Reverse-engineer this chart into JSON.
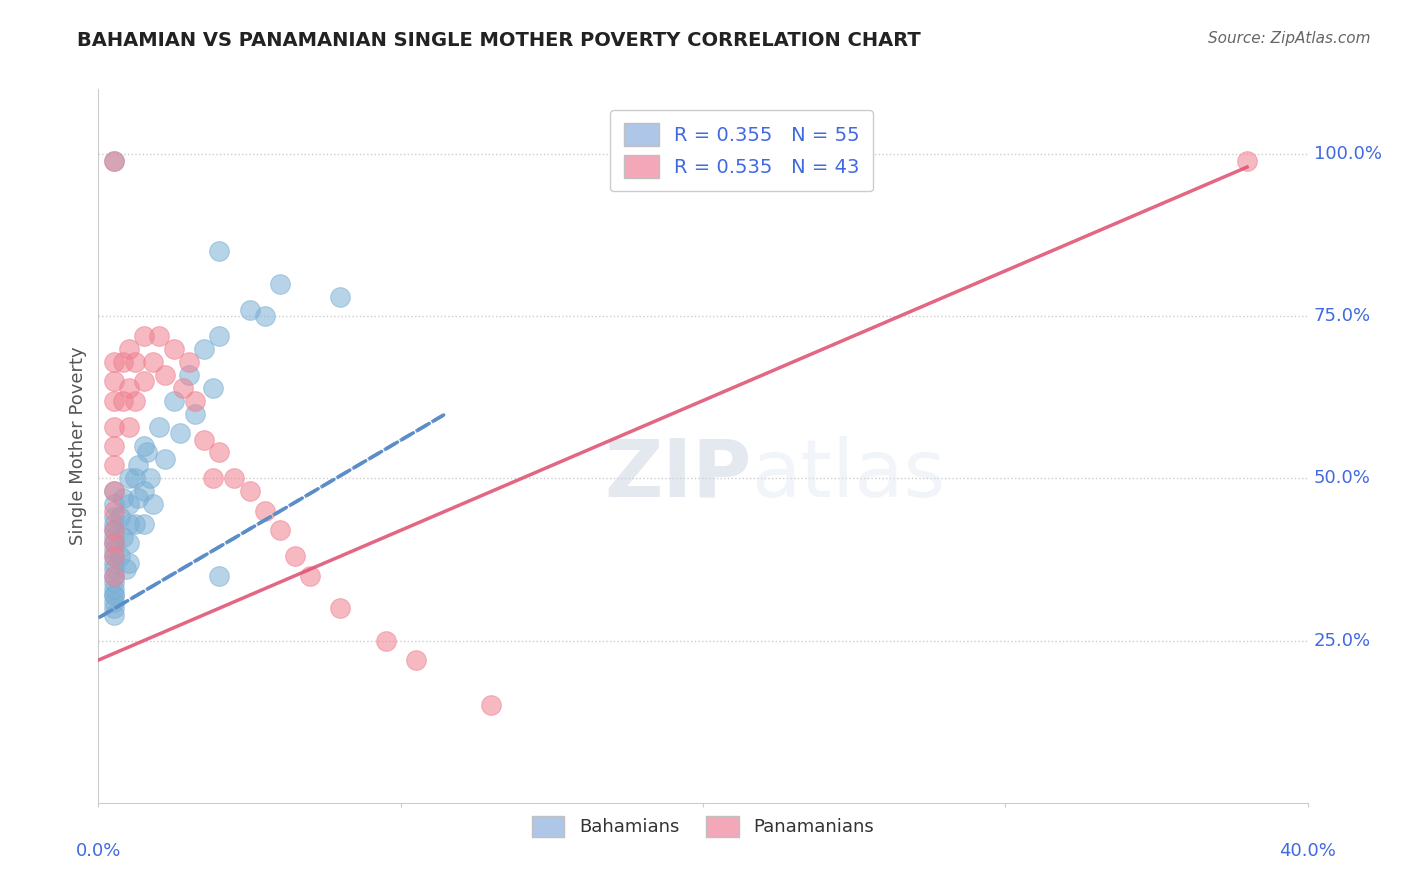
{
  "title": "BAHAMIAN VS PANAMANIAN SINGLE MOTHER POVERTY CORRELATION CHART",
  "source": "Source: ZipAtlas.com",
  "ylabel": "Single Mother Poverty",
  "ytick_labels": [
    "100.0%",
    "75.0%",
    "50.0%",
    "25.0%"
  ],
  "ytick_values": [
    1.0,
    0.75,
    0.5,
    0.25
  ],
  "xlim": [
    0.0,
    0.4
  ],
  "ylim": [
    0.0,
    1.1
  ],
  "legend_entries": [
    {
      "label": "R = 0.355   N = 55",
      "color": "#aec6e8"
    },
    {
      "label": "R = 0.535   N = 43",
      "color": "#f4a7b9"
    }
  ],
  "bahamian_color": "#7bafd4",
  "panamanian_color": "#f08090",
  "watermark_zip": "ZIP",
  "watermark_atlas": "atlas",
  "blue_line": {
    "x0": 0.0,
    "y0": 0.285,
    "x1": 0.115,
    "y1": 0.6
  },
  "pink_line": {
    "x0": 0.0,
    "y0": 0.22,
    "x1": 0.38,
    "y1": 0.98
  },
  "bahamian_x": [
    0.005,
    0.005,
    0.005,
    0.005,
    0.005,
    0.005,
    0.005,
    0.005,
    0.005,
    0.005,
    0.005,
    0.005,
    0.005,
    0.005,
    0.005,
    0.005,
    0.005,
    0.005,
    0.005,
    0.005,
    0.007,
    0.007,
    0.008,
    0.008,
    0.009,
    0.01,
    0.01,
    0.01,
    0.01,
    0.01,
    0.012,
    0.012,
    0.013,
    0.013,
    0.015,
    0.015,
    0.015,
    0.016,
    0.017,
    0.018,
    0.02,
    0.022,
    0.025,
    0.027,
    0.03,
    0.032,
    0.035,
    0.038,
    0.04,
    0.04,
    0.05,
    0.055,
    0.06,
    0.04,
    0.08
  ],
  "bahamian_y": [
    0.99,
    0.48,
    0.46,
    0.44,
    0.43,
    0.42,
    0.41,
    0.4,
    0.39,
    0.38,
    0.37,
    0.36,
    0.35,
    0.34,
    0.33,
    0.32,
    0.32,
    0.31,
    0.3,
    0.29,
    0.44,
    0.38,
    0.47,
    0.41,
    0.36,
    0.5,
    0.46,
    0.43,
    0.4,
    0.37,
    0.5,
    0.43,
    0.52,
    0.47,
    0.55,
    0.48,
    0.43,
    0.54,
    0.5,
    0.46,
    0.58,
    0.53,
    0.62,
    0.57,
    0.66,
    0.6,
    0.7,
    0.64,
    0.35,
    0.72,
    0.76,
    0.75,
    0.8,
    0.85,
    0.78
  ],
  "panamanian_x": [
    0.005,
    0.005,
    0.005,
    0.005,
    0.005,
    0.005,
    0.005,
    0.005,
    0.005,
    0.005,
    0.005,
    0.005,
    0.005,
    0.008,
    0.008,
    0.01,
    0.01,
    0.01,
    0.012,
    0.012,
    0.015,
    0.015,
    0.018,
    0.02,
    0.022,
    0.025,
    0.028,
    0.03,
    0.032,
    0.035,
    0.038,
    0.04,
    0.045,
    0.05,
    0.055,
    0.06,
    0.065,
    0.07,
    0.08,
    0.095,
    0.105,
    0.13,
    0.38
  ],
  "panamanian_y": [
    0.99,
    0.68,
    0.65,
    0.62,
    0.58,
    0.55,
    0.52,
    0.48,
    0.45,
    0.42,
    0.4,
    0.38,
    0.35,
    0.68,
    0.62,
    0.7,
    0.64,
    0.58,
    0.68,
    0.62,
    0.72,
    0.65,
    0.68,
    0.72,
    0.66,
    0.7,
    0.64,
    0.68,
    0.62,
    0.56,
    0.5,
    0.54,
    0.5,
    0.48,
    0.45,
    0.42,
    0.38,
    0.35,
    0.3,
    0.25,
    0.22,
    0.15,
    0.99
  ]
}
